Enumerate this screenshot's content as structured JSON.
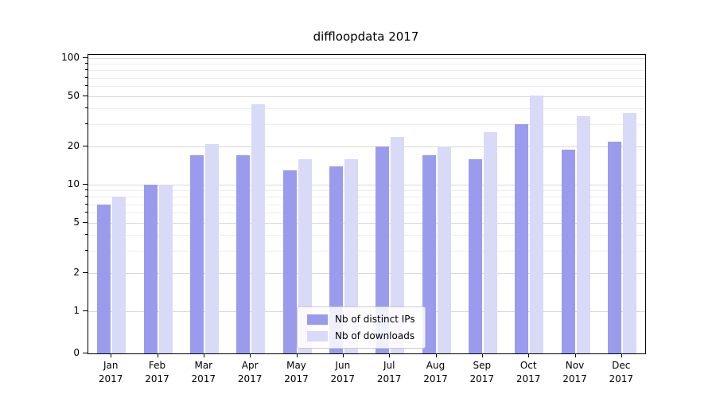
{
  "chart_data": {
    "type": "bar",
    "title": "diffloopdata 2017",
    "categories": [
      "Jan",
      "Feb",
      "Mar",
      "Apr",
      "May",
      "Jun",
      "Jul",
      "Aug",
      "Sep",
      "Oct",
      "Nov",
      "Dec"
    ],
    "year_label": "2017",
    "series": [
      {
        "name": "Nb of distinct IPs",
        "color": "#9b9bee",
        "values": [
          7,
          10,
          17,
          17,
          13,
          14,
          20,
          17,
          16,
          30,
          19,
          22
        ]
      },
      {
        "name": "Nb of downloads",
        "color": "#d9d9f8",
        "values": [
          8,
          10,
          21,
          43,
          16,
          16,
          24,
          20,
          26,
          51,
          35,
          37
        ]
      }
    ],
    "yscale": "symlog",
    "ylim": [
      0,
      110
    ],
    "yticks": [
      0,
      1,
      2,
      5,
      10,
      20,
      50,
      100
    ],
    "y_minor_ticks": [
      3,
      4,
      6,
      7,
      8,
      9,
      30,
      40,
      60,
      70,
      80,
      90
    ],
    "grid": true,
    "legend_position": "lower center",
    "xlabel": "",
    "ylabel": ""
  }
}
